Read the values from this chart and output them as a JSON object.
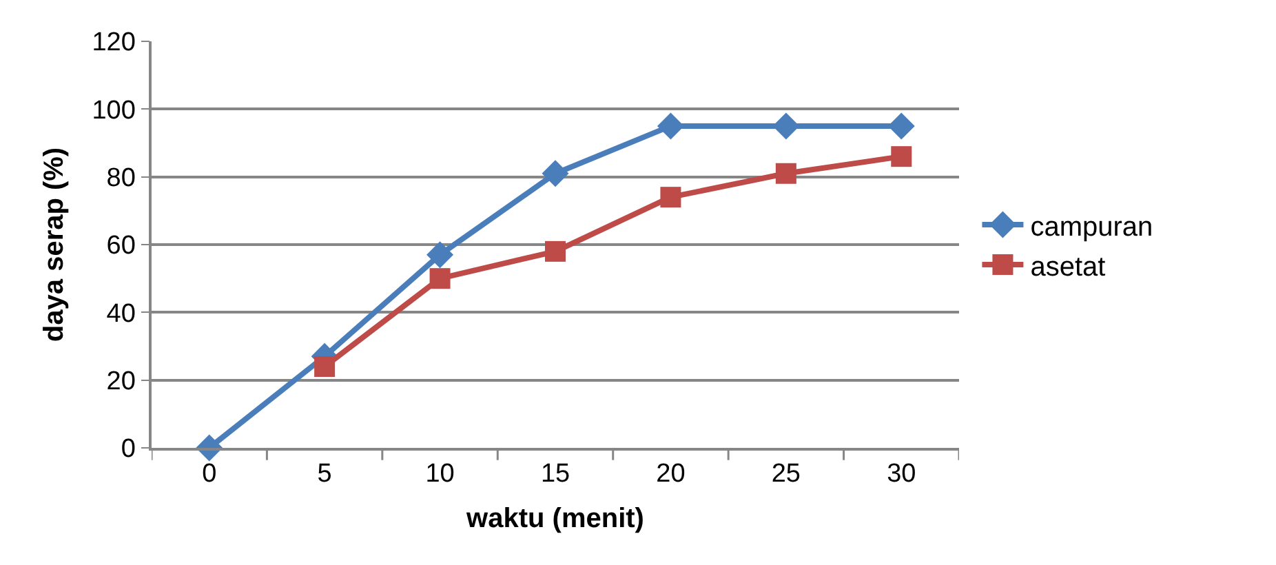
{
  "chart_data": {
    "type": "line",
    "xlabel": "waktu (menit)",
    "ylabel": "daya serap (%)",
    "categories": [
      "0",
      "5",
      "10",
      "15",
      "20",
      "25",
      "30"
    ],
    "series": [
      {
        "name": "campuran",
        "color": "#4a7ebb",
        "marker": "diamond",
        "values": [
          0,
          27,
          57,
          81,
          95,
          95,
          95
        ]
      },
      {
        "name": "asetat",
        "color": "#be4b48",
        "marker": "square",
        "values": [
          null,
          24,
          50,
          58,
          74,
          81,
          86
        ]
      }
    ],
    "ylim": [
      0,
      120
    ],
    "yticks": [
      0,
      20,
      40,
      60,
      80,
      100,
      120
    ],
    "grid": "y",
    "legend": "right",
    "line_style": "solid"
  }
}
